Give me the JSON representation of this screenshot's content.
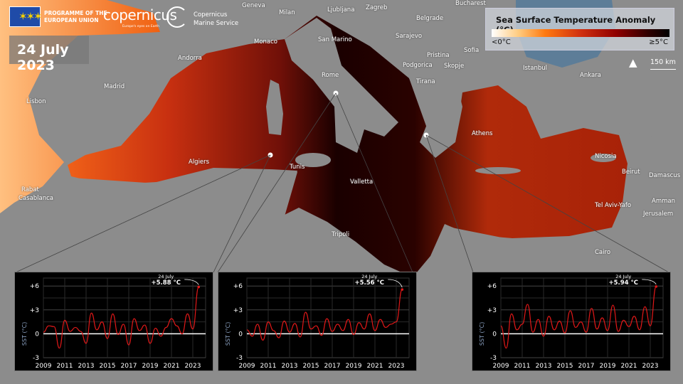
{
  "header": {
    "eu_logo_text": "PROGRAMME OF THE EUROPEAN UNION",
    "eu_line1": "PROGRAMME OF THE",
    "eu_line2": "EUROPEAN UNION",
    "copernicus": "opernicus",
    "copernicus_tagline": "Europe's eyes on Earth",
    "cms_line1": "Copernicus",
    "cms_line2": "Marine Service",
    "date": "24 July 2023"
  },
  "legend": {
    "title": "Sea Surface Temperature Anomaly (°C)",
    "min": "<0°C",
    "max": "≥5°C",
    "colors": [
      "#ffffff",
      "#ff7a10",
      "#d03010",
      "#900000",
      "#000000"
    ]
  },
  "map": {
    "north": "N",
    "scale": "150 km",
    "colors": {
      "land": "#8c8c8c",
      "black_sea": "#5d7d98",
      "sea_hot": "#1a0000",
      "sea_warm": "#e04a10"
    },
    "cities": [
      "Geneva",
      "Milan",
      "Ljubljana",
      "Zagreb",
      "Belgrade",
      "Bucharest",
      "Monaco",
      "San Marino",
      "Sarajevo",
      "Pristina",
      "Sofia",
      "Podgorica",
      "Skopje",
      "Andorra",
      "Rome",
      "Tirana",
      "Istanbul",
      "Ankara",
      "Madrid",
      "Lisbon",
      "Athens",
      "Nicosia",
      "Beirut",
      "Damascus",
      "Algiers",
      "Tunis",
      "Valletta",
      "Rabat",
      "Casablanca",
      "Tel Aviv-Yafo",
      "Amman",
      "Jerusalem",
      "Tripoli",
      "Cairo"
    ]
  },
  "chart_data": [
    {
      "type": "line",
      "ylabel": "SST (°C)",
      "yticks": [
        "+6",
        "+3",
        "0",
        "-3"
      ],
      "ylim": [
        -3,
        7
      ],
      "xticks": [
        "2009",
        "2011",
        "2013",
        "2015",
        "2017",
        "2019",
        "2021",
        "2023"
      ],
      "xlim": [
        2009,
        2024.2
      ],
      "annotation": {
        "date": "24 July",
        "value": "+5.88 °C"
      },
      "color": "#e01818",
      "x": [
        2009,
        2009.5,
        2010,
        2010.5,
        2011,
        2011.5,
        2012,
        2012.5,
        2013,
        2013.5,
        2014,
        2014.5,
        2015,
        2015.5,
        2016,
        2016.5,
        2017,
        2017.5,
        2018,
        2018.5,
        2019,
        2019.5,
        2020,
        2020.5,
        2021,
        2021.5,
        2022,
        2022.5,
        2023,
        2023.55
      ],
      "values": [
        0.2,
        1.0,
        0.9,
        -1.8,
        1.7,
        0.3,
        0.8,
        0.3,
        -1.2,
        2.6,
        0.5,
        1.5,
        -0.6,
        2.5,
        -0.1,
        1.2,
        -1.4,
        1.9,
        0.4,
        1.1,
        -1.2,
        0.7,
        -0.3,
        0.8,
        1.9,
        1.0,
        0.0,
        2.5,
        0.6,
        5.88
      ]
    },
    {
      "type": "line",
      "ylabel": "SST (°C)",
      "yticks": [
        "+6",
        "+3",
        "0",
        "-3"
      ],
      "ylim": [
        -3,
        7
      ],
      "xticks": [
        "2009",
        "2011",
        "2013",
        "2015",
        "2017",
        "2019",
        "2021",
        "2023"
      ],
      "xlim": [
        2009,
        2024.2
      ],
      "annotation": {
        "date": "24 July",
        "value": "+5.56 °C"
      },
      "color": "#e01818",
      "x": [
        2009,
        2009.5,
        2010,
        2010.5,
        2011,
        2011.5,
        2012,
        2012.5,
        2013,
        2013.5,
        2014,
        2014.5,
        2015,
        2015.5,
        2016,
        2016.5,
        2017,
        2017.5,
        2018,
        2018.5,
        2019,
        2019.5,
        2020,
        2020.5,
        2021,
        2021.5,
        2022,
        2022.5,
        2023,
        2023.55
      ],
      "values": [
        0.5,
        -0.3,
        1.2,
        -0.8,
        1.5,
        0.4,
        -0.5,
        1.6,
        0.2,
        1.3,
        -0.4,
        2.7,
        0.6,
        1.0,
        -0.2,
        1.9,
        0.3,
        1.2,
        0.4,
        1.8,
        -0.1,
        1.4,
        0.6,
        2.5,
        0.4,
        1.8,
        0.8,
        1.2,
        1.5,
        5.56
      ]
    },
    {
      "type": "line",
      "ylabel": "SST (°C)",
      "yticks": [
        "+6",
        "+3",
        "0",
        "-3"
      ],
      "ylim": [
        -3,
        7
      ],
      "xticks": [
        "2009",
        "2011",
        "2013",
        "2015",
        "2017",
        "2019",
        "2021",
        "2023"
      ],
      "xlim": [
        2009,
        2024.2
      ],
      "annotation": {
        "date": "24 July",
        "value": "+5.94 °C"
      },
      "color": "#e01818",
      "x": [
        2009,
        2009.5,
        2010,
        2010.5,
        2011,
        2011.5,
        2012,
        2012.5,
        2013,
        2013.5,
        2014,
        2014.5,
        2015,
        2015.5,
        2016,
        2016.5,
        2017,
        2017.5,
        2018,
        2018.5,
        2019,
        2019.5,
        2020,
        2020.5,
        2021,
        2021.5,
        2022,
        2022.5,
        2023,
        2023.55
      ],
      "values": [
        1.0,
        -1.8,
        2.5,
        0.5,
        1.2,
        3.7,
        0.2,
        1.8,
        -0.3,
        2.2,
        0.5,
        1.6,
        0.1,
        2.9,
        0.8,
        1.5,
        0.2,
        3.2,
        0.6,
        2.0,
        0.4,
        3.6,
        0.3,
        1.7,
        0.9,
        2.2,
        0.5,
        3.4,
        1.0,
        5.94
      ]
    }
  ]
}
